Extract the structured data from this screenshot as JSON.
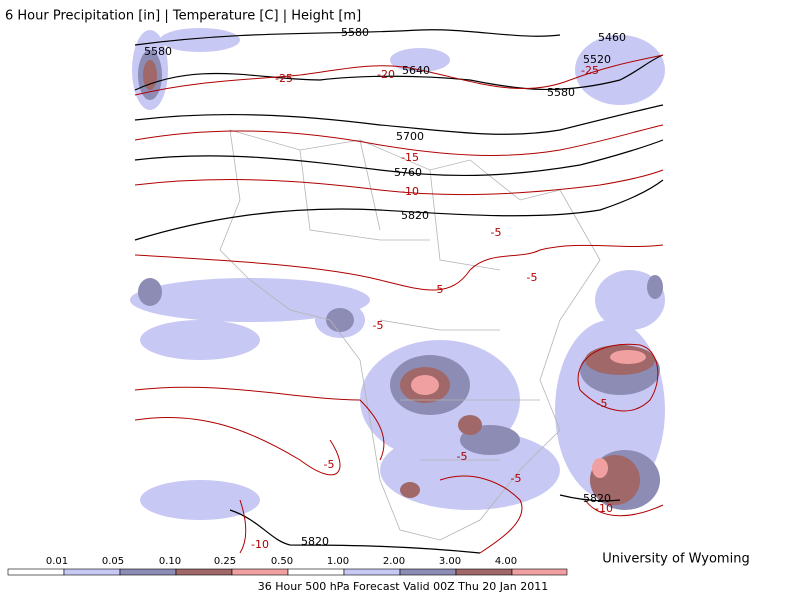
{
  "header": {
    "title": "6 Hour Precipitation [in] | Temperature [C] | Height [m]"
  },
  "map": {
    "height_labels": [
      "5580",
      "5580",
      "5640",
      "5580",
      "5520",
      "5460",
      "5700",
      "5760",
      "5820",
      "5820",
      "5820"
    ],
    "temperature_labels": [
      "-25",
      "-20",
      "-25",
      "-15",
      "-10",
      "-5",
      "-5",
      "-5",
      "-5",
      "-5",
      "-5",
      "-5",
      "-5",
      "-10",
      "-10"
    ]
  },
  "legend": {
    "labels": [
      "0.01",
      "0.05",
      "0.10",
      "0.25",
      "0.50",
      "1.00",
      "2.00",
      "3.00",
      "4.00"
    ]
  },
  "footer": {
    "caption": "36 Hour 500 hPa Forecast Valid 00Z Thu 20 Jan 2011",
    "credit": "University of Wyoming"
  }
}
